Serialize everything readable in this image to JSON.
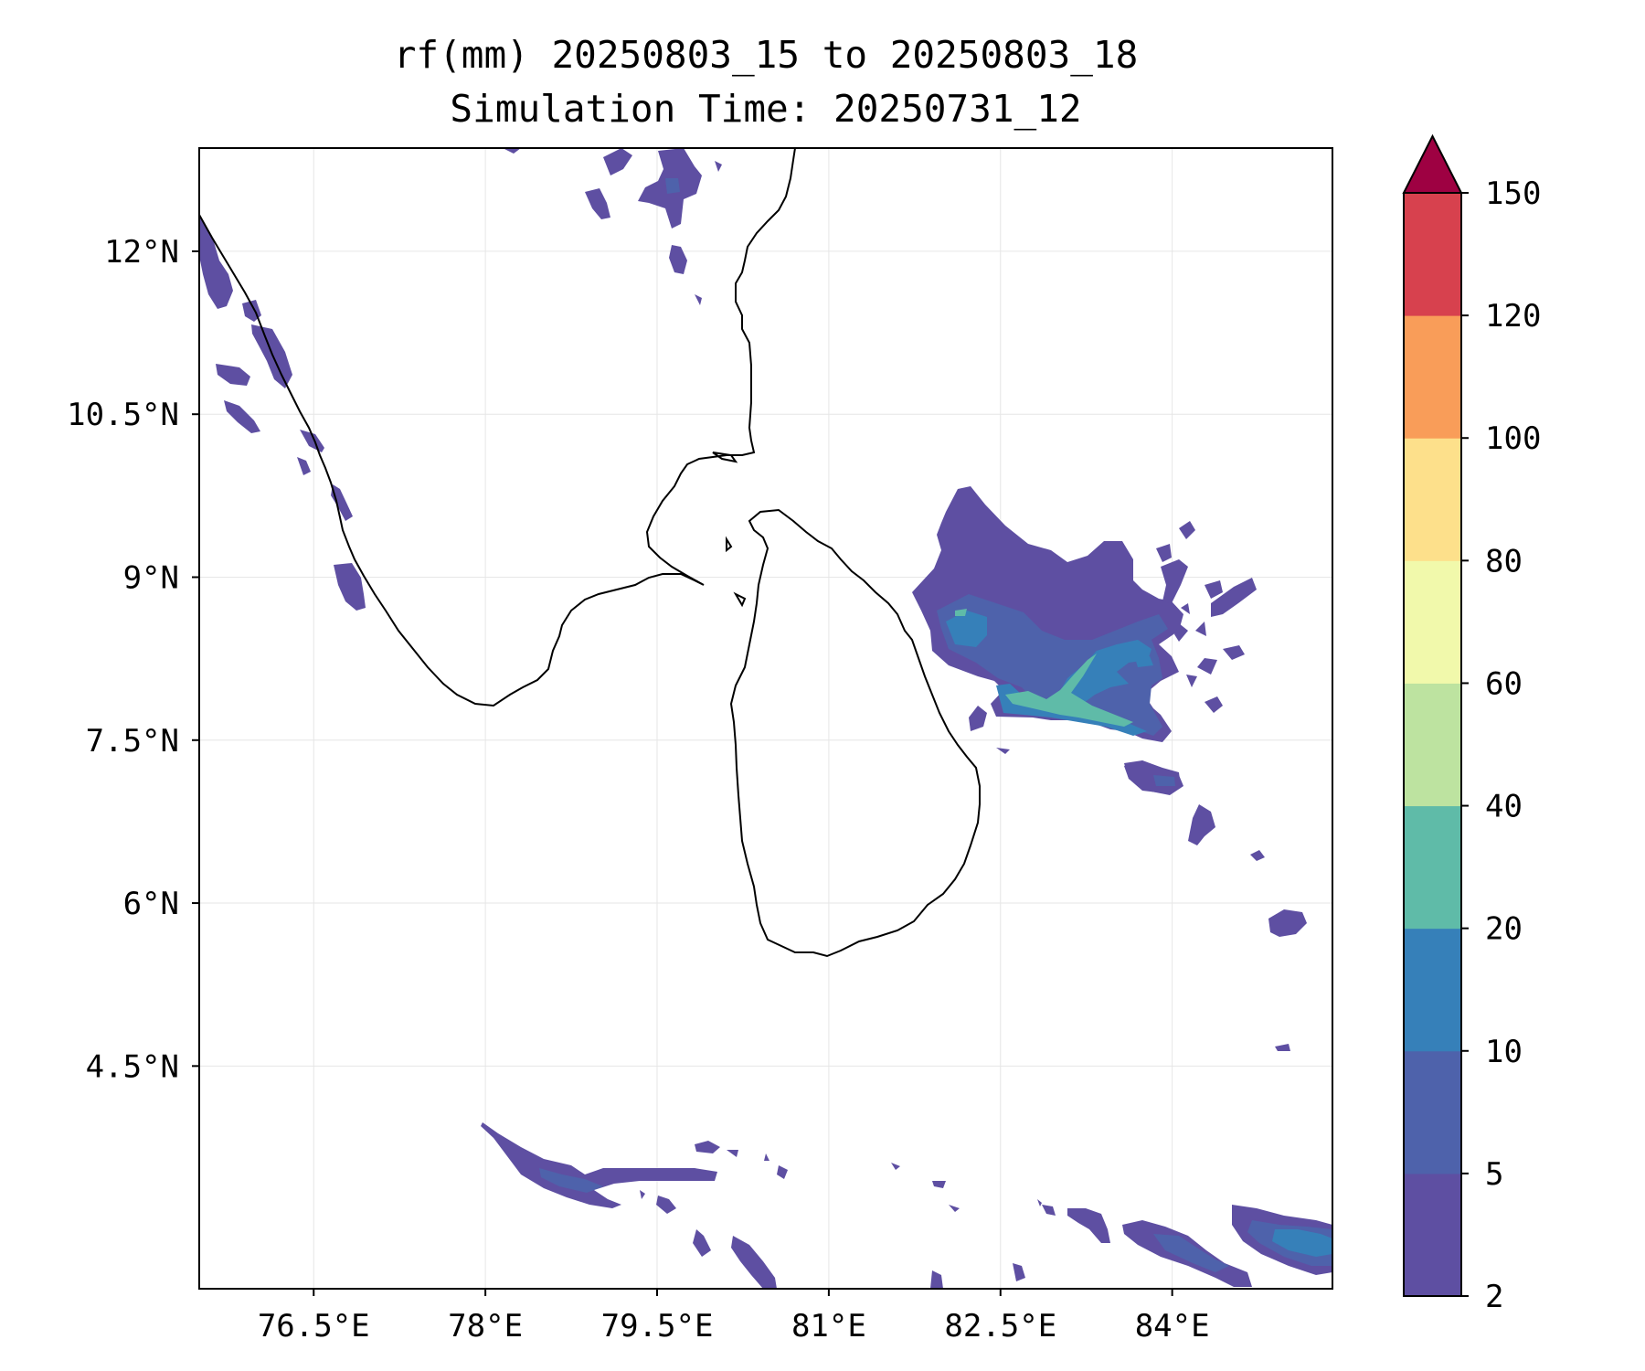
{
  "title_line1": "rf(mm) 20250803_15 to 20250803_18",
  "title_line2": "Simulation Time: 20250731_12",
  "map": {
    "extent": {
      "lon_min": 75.5,
      "lon_max": 85.4,
      "lat_min": 2.45,
      "lat_max": 12.95
    },
    "grid": true,
    "lon_ticks": [
      {
        "value": 76.5,
        "label": "76.5°E"
      },
      {
        "value": 78.0,
        "label": "78°E"
      },
      {
        "value": 79.5,
        "label": "79.5°E"
      },
      {
        "value": 81.0,
        "label": "81°E"
      },
      {
        "value": 82.5,
        "label": "82.5°E"
      },
      {
        "value": 84.0,
        "label": "84°E"
      }
    ],
    "lat_ticks": [
      {
        "value": 12.0,
        "label": "12°N"
      },
      {
        "value": 10.5,
        "label": "10.5°N"
      },
      {
        "value": 9.0,
        "label": "9°N"
      },
      {
        "value": 7.5,
        "label": "7.5°N"
      },
      {
        "value": 6.0,
        "label": "6°N"
      },
      {
        "value": 4.5,
        "label": "4.5°N"
      }
    ]
  },
  "colorbar": {
    "extend": "max",
    "extend_color": "#9e0142",
    "levels": [
      {
        "value": 2,
        "label": "2",
        "color": "#5e4fa2"
      },
      {
        "value": 5,
        "label": "5",
        "color": "#4e62ab"
      },
      {
        "value": 10,
        "label": "10",
        "color": "#3680b9"
      },
      {
        "value": 20,
        "label": "20",
        "color": "#5fbba8"
      },
      {
        "value": 40,
        "label": "40",
        "color": "#bde3a0"
      },
      {
        "value": 60,
        "label": "60",
        "color": "#f1f9ab"
      },
      {
        "value": 80,
        "label": "80",
        "color": "#fde08b"
      },
      {
        "value": 100,
        "label": "100",
        "color": "#f99d59"
      },
      {
        "value": 120,
        "label": "120",
        "color": "#d7414e"
      },
      {
        "value": 150,
        "label": "150",
        "color": null
      }
    ]
  },
  "colors": {
    "coastline": "#000000",
    "grid": "#e6e6e6"
  }
}
